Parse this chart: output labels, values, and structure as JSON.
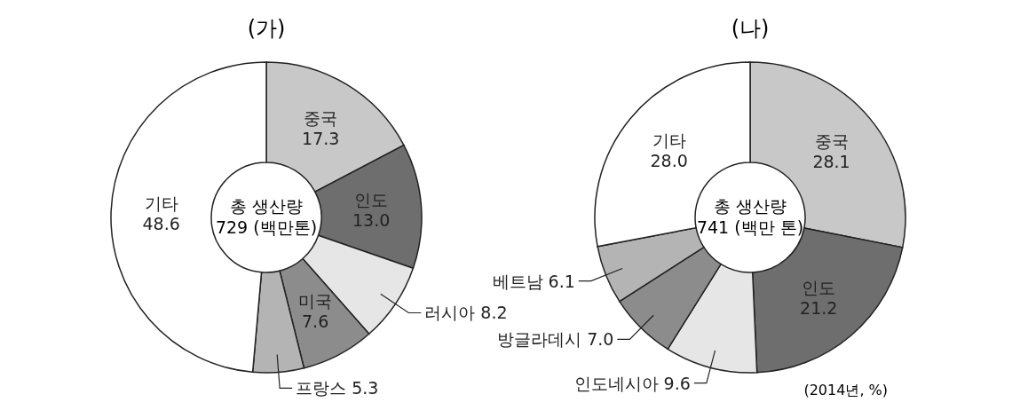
{
  "chart_data": [
    {
      "type": "donut",
      "title": "(가)",
      "categories": [
        "중국",
        "인도",
        "러시아",
        "미국",
        "프랑스",
        "기타"
      ],
      "values": [
        17.3,
        13.0,
        8.2,
        7.6,
        5.3,
        48.6
      ],
      "colors": [
        "#c8c8c8",
        "#6e6e6e",
        "#e6e6e6",
        "#8c8c8c",
        "#b4b4b4",
        "#ffffff"
      ],
      "value_labels": [
        "17.3",
        "13.0",
        "8.2",
        "7.6",
        "5.3",
        "48.6"
      ],
      "annotations": [
        "총 생산량",
        "729 (백만톤)"
      ]
    },
    {
      "type": "donut",
      "title": "(나)",
      "categories": [
        "중국",
        "인도",
        "인도네시아",
        "방글라데시",
        "베트남",
        "기타"
      ],
      "values": [
        28.1,
        21.2,
        9.6,
        7.0,
        6.1,
        28.0
      ],
      "colors": [
        "#c8c8c8",
        "#6e6e6e",
        "#e6e6e6",
        "#8c8c8c",
        "#b4b4b4",
        "#ffffff"
      ],
      "value_labels": [
        "28.1",
        "21.2",
        "9.6",
        "7.0",
        "6.1",
        "28.0"
      ],
      "annotations": [
        "총 생산량",
        "741 (백만 톤)",
        "(2014년, %)"
      ]
    }
  ]
}
